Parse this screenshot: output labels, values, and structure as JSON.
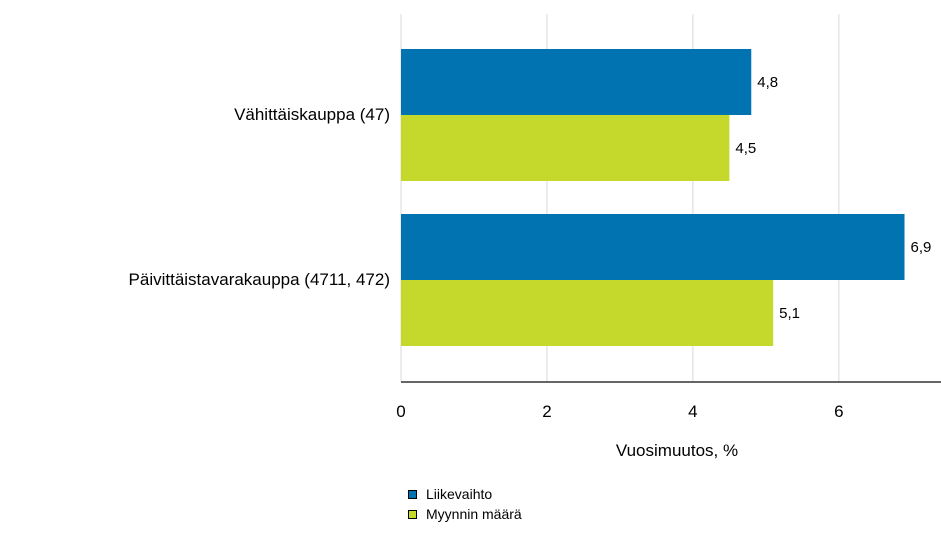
{
  "chart_data": {
    "type": "bar",
    "orientation": "horizontal",
    "categories": [
      "Vähittäiskauppa (47)",
      "Päivittäistavarakauppa (4711, 472)"
    ],
    "series": [
      {
        "name": "Liikevaihto",
        "values": [
          4.8,
          6.9
        ],
        "value_labels": [
          "4,8",
          "6,9"
        ],
        "color": "#0073b0"
      },
      {
        "name": "Myynnin määrä",
        "values": [
          4.5,
          5.1
        ],
        "value_labels": [
          "4,5",
          "5,1"
        ],
        "color": "#c5d92d"
      }
    ],
    "xlabel": "Vuosimuutos, %",
    "xlim": [
      0,
      7.4
    ],
    "xticks": [
      0,
      2,
      4,
      6
    ],
    "xtick_labels": [
      "0",
      "2",
      "4",
      "6"
    ],
    "grid": true,
    "legend_position": "bottom"
  }
}
